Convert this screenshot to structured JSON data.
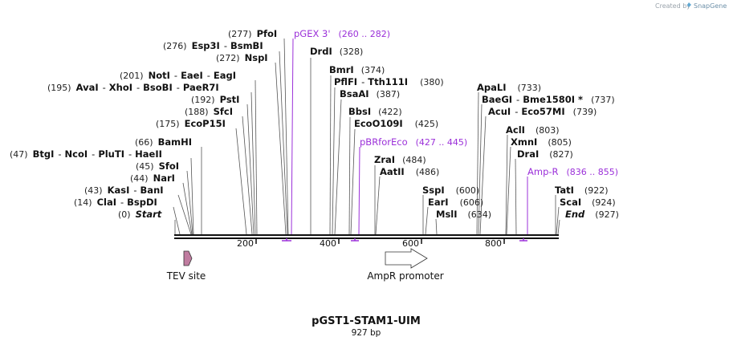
{
  "credit": {
    "prefix": "Created by",
    "brand": "SnapGene"
  },
  "title": "pGST1-STAM1-UIM",
  "length_label": "927 bp",
  "colors": {
    "primer": "#9b30d9",
    "tev_fill": "#c07ca0",
    "promoter_fill": "#ffffff",
    "backbone": "#111111"
  },
  "ruler_ticks": [
    "200",
    "400",
    "600",
    "800"
  ],
  "sites": [
    {
      "pos": "(277)",
      "names": [
        "PfoI"
      ]
    },
    {
      "pos": "(276)",
      "names": [
        "Esp3I",
        "BsmBI"
      ]
    },
    {
      "pos": "(272)",
      "names": [
        "NspI"
      ]
    },
    {
      "pos": "(201)",
      "names": [
        "NotI",
        "EaeI",
        "EagI"
      ]
    },
    {
      "pos": "(195)",
      "names": [
        "AvaI",
        "XhoI",
        "BsoBI",
        "PaeR7I"
      ]
    },
    {
      "pos": "(192)",
      "names": [
        "PstI"
      ]
    },
    {
      "pos": "(188)",
      "names": [
        "SfcI"
      ]
    },
    {
      "pos": "(175)",
      "names": [
        "EcoP15I"
      ]
    },
    {
      "pos": "(66)",
      "names": [
        "BamHI"
      ]
    },
    {
      "pos": "(47)",
      "names": [
        "BtgI",
        "NcoI",
        "PluTI",
        "HaeII"
      ]
    },
    {
      "pos": "(45)",
      "names": [
        "SfoI"
      ]
    },
    {
      "pos": "(44)",
      "names": [
        "NarI"
      ]
    },
    {
      "pos": "(43)",
      "names": [
        "KasI",
        "BanI"
      ]
    },
    {
      "pos": "(14)",
      "names": [
        "ClaI",
        "BspDI"
      ]
    },
    {
      "pos": "(0)",
      "names": [
        "Start"
      ]
    },
    {
      "pos": "(328)",
      "names": [
        "DrdI"
      ]
    },
    {
      "pos": "(374)",
      "names": [
        "BmrI"
      ]
    },
    {
      "pos": "(380)",
      "names": [
        "PflFI",
        "Tth111I"
      ]
    },
    {
      "pos": "(387)",
      "names": [
        "BsaAI"
      ]
    },
    {
      "pos": "(422)",
      "names": [
        "BbsI"
      ]
    },
    {
      "pos": "(425)",
      "names": [
        "EcoO109I"
      ]
    },
    {
      "pos": "(484)",
      "names": [
        "ZraI"
      ]
    },
    {
      "pos": "(486)",
      "names": [
        "AatII"
      ]
    },
    {
      "pos": "(600)",
      "names": [
        "SspI"
      ]
    },
    {
      "pos": "(606)",
      "names": [
        "EarI"
      ]
    },
    {
      "pos": "(634)",
      "names": [
        "MslI"
      ]
    },
    {
      "pos": "(733)",
      "names": [
        "ApaLI"
      ]
    },
    {
      "pos": "(737)",
      "names": [
        "BaeGI",
        "Bme1580I *"
      ]
    },
    {
      "pos": "(739)",
      "names": [
        "AcuI",
        "Eco57MI"
      ]
    },
    {
      "pos": "(803)",
      "names": [
        "AclI"
      ]
    },
    {
      "pos": "(805)",
      "names": [
        "XmnI"
      ]
    },
    {
      "pos": "(827)",
      "names": [
        "DraI"
      ]
    },
    {
      "pos": "(922)",
      "names": [
        "TatI"
      ]
    },
    {
      "pos": "(924)",
      "names": [
        "ScaI"
      ]
    },
    {
      "pos": "(927)",
      "names": [
        "End"
      ]
    }
  ],
  "primers": [
    {
      "name": "pGEX 3'",
      "range": "(260 .. 282)"
    },
    {
      "name": "pBRforEco",
      "range": "(427 .. 445)"
    },
    {
      "name": "Amp-R",
      "range": "(836 .. 855)"
    }
  ],
  "features": [
    {
      "name": "TEV site"
    },
    {
      "name": "AmpR promoter"
    }
  ]
}
